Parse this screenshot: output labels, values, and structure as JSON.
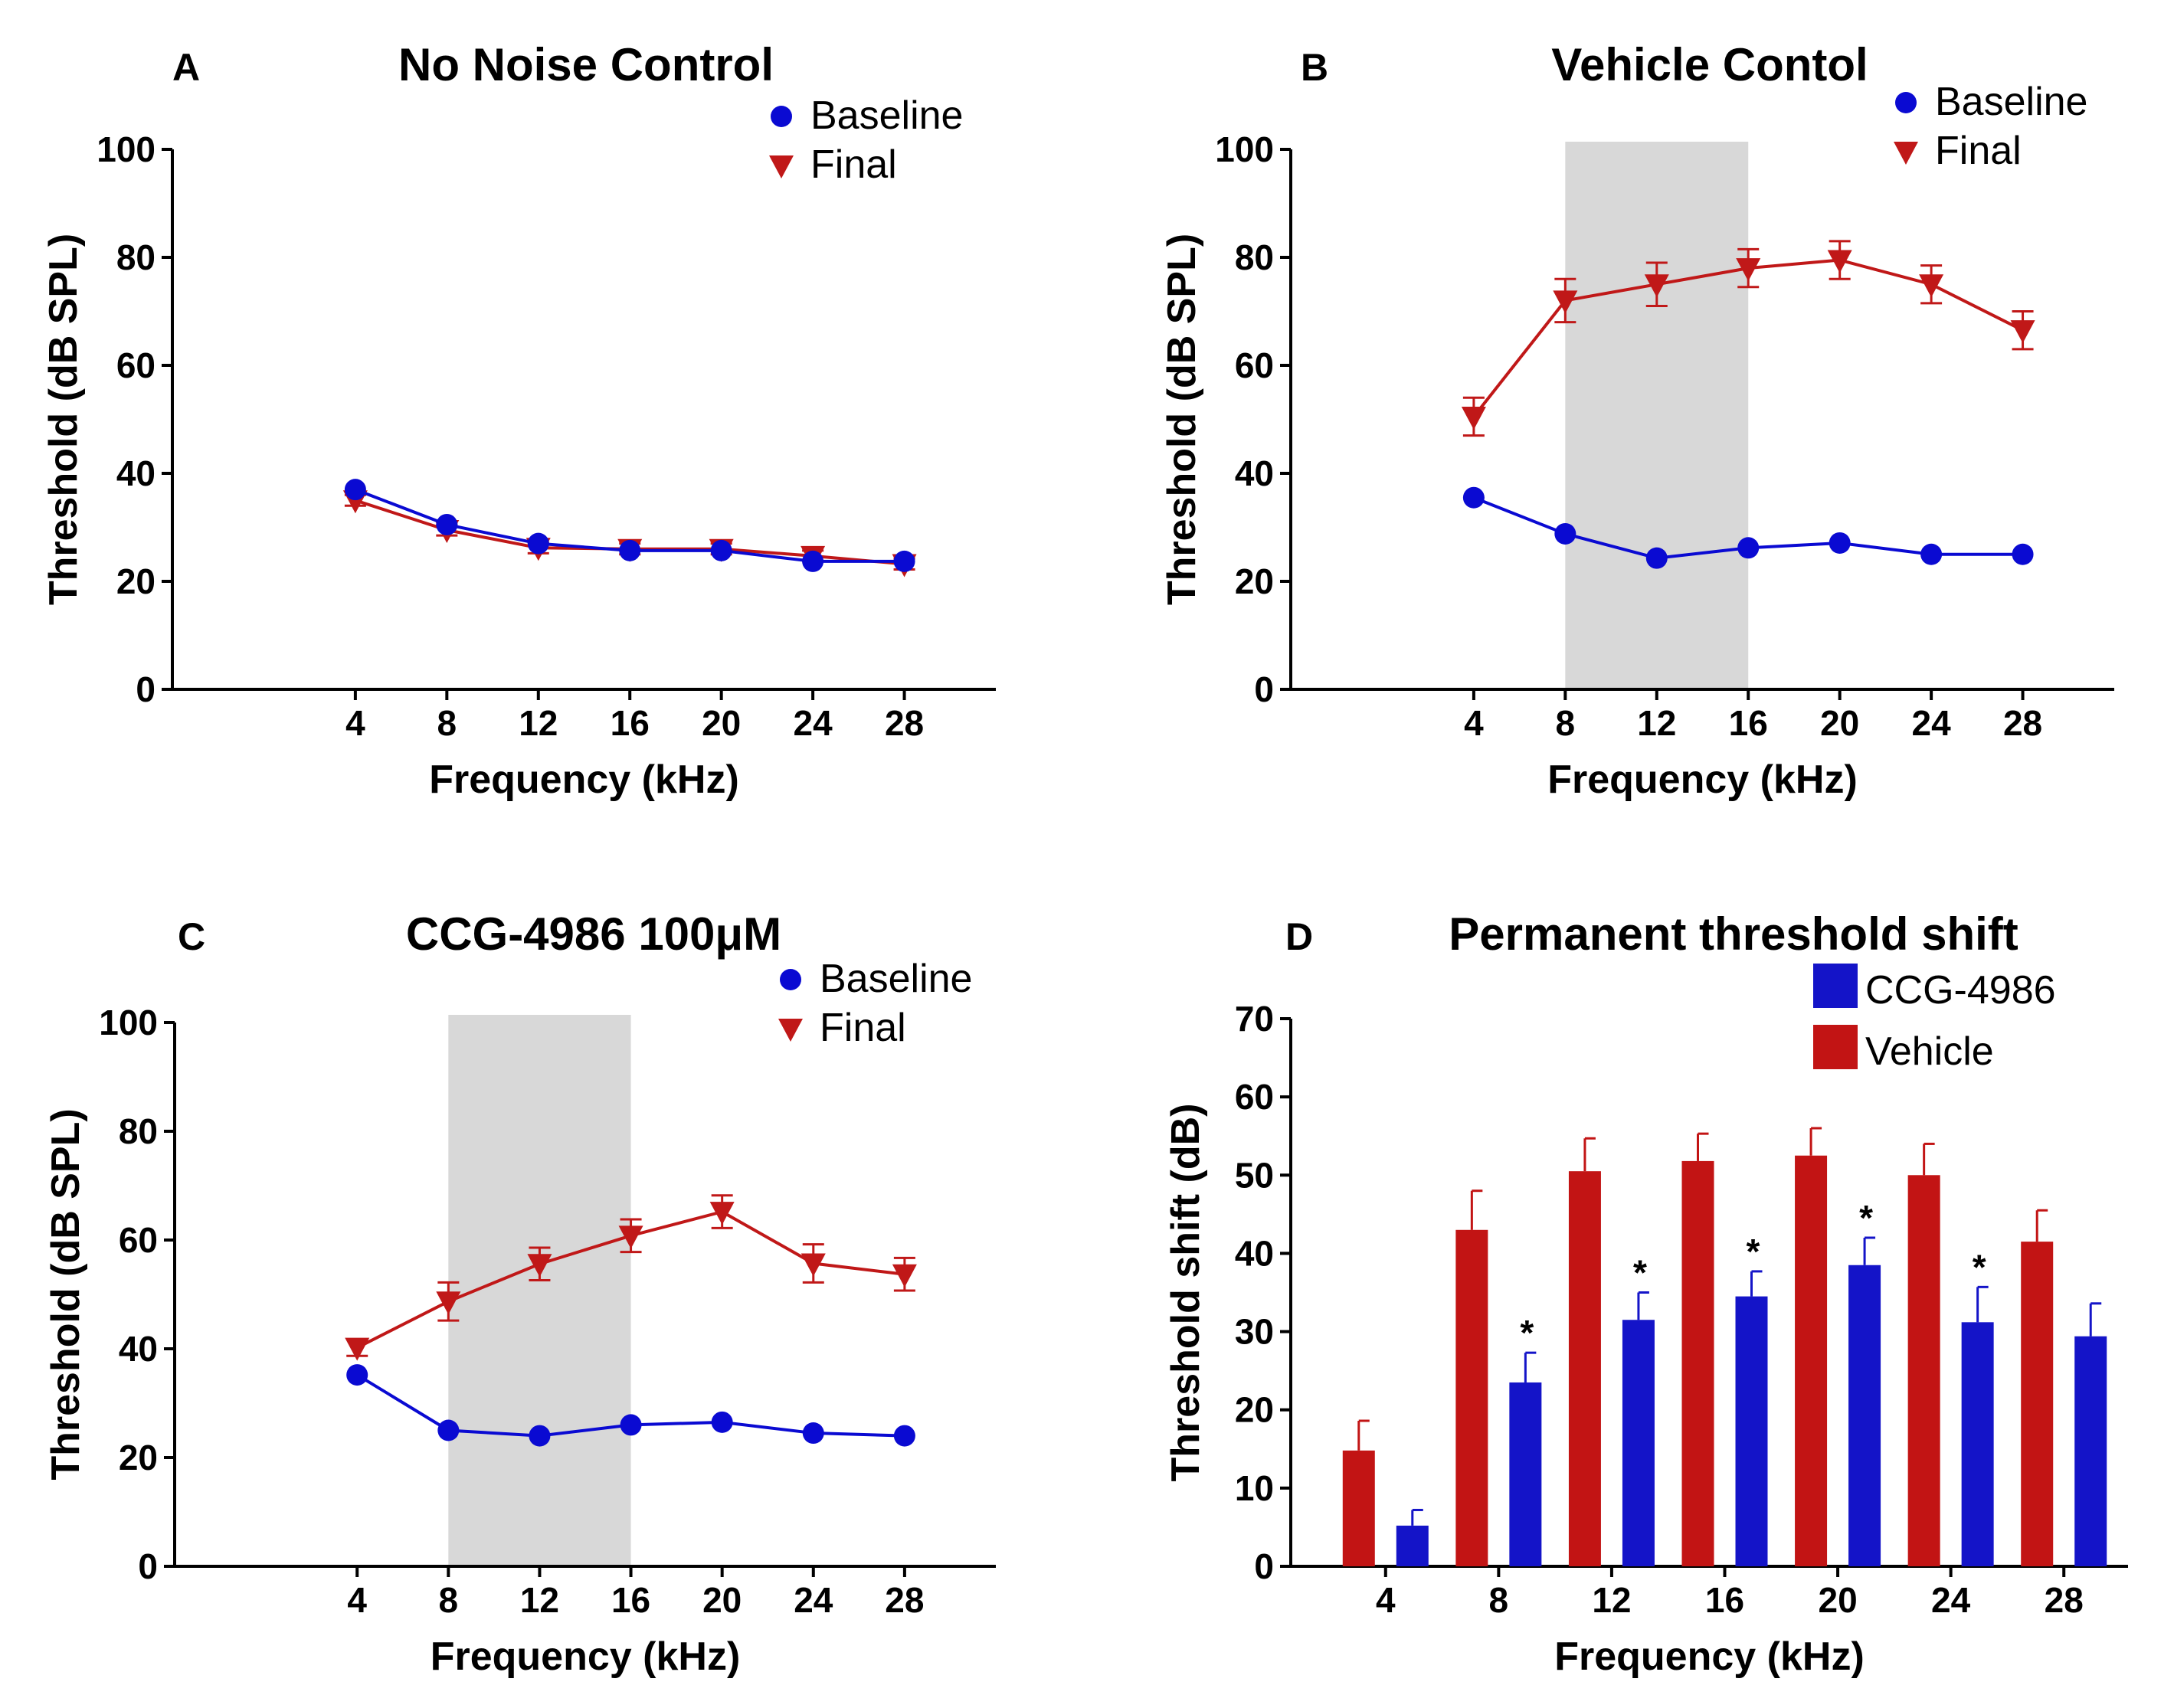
{
  "chart_data": [
    {
      "id": "A",
      "type": "line",
      "panel_label": "A",
      "title": "No Noise Control",
      "xlabel": "Frequency (kHz)",
      "ylabel": "Threshold (dB SPL)",
      "x": [
        4,
        8,
        12,
        16,
        20,
        24,
        28
      ],
      "xticks": [
        "4",
        "8",
        "12",
        "16",
        "20",
        "24",
        "28"
      ],
      "xlim": [
        -4,
        32
      ],
      "ylim": [
        0,
        100
      ],
      "yticks": [
        "0",
        "20",
        "40",
        "60",
        "80",
        "100"
      ],
      "shaded_region": null,
      "legend": [
        "Baseline",
        "Final"
      ],
      "series": [
        {
          "name": "Baseline",
          "color": "#0a0ad2",
          "marker": "circle",
          "values": [
            37,
            30.5,
            27,
            25.7,
            25.7,
            23.7,
            23.7
          ],
          "errors": [
            0,
            0,
            0,
            0,
            0,
            0,
            0
          ]
        },
        {
          "name": "Final",
          "color": "#c01818",
          "marker": "triangle-down",
          "values": [
            35,
            29.5,
            26.2,
            26,
            26,
            24.7,
            23.2
          ],
          "errors": [
            1,
            1,
            1,
            1,
            1,
            1,
            1
          ]
        }
      ]
    },
    {
      "id": "B",
      "type": "line",
      "panel_label": "B",
      "title": "Vehicle Contol",
      "xlabel": "Frequency (kHz)",
      "ylabel": "Threshold (dB SPL)",
      "x": [
        4,
        8,
        12,
        16,
        20,
        24,
        28
      ],
      "xticks": [
        "4",
        "8",
        "12",
        "16",
        "20",
        "24",
        "28"
      ],
      "xlim": [
        -4,
        32
      ],
      "ylim": [
        0,
        100
      ],
      "yticks": [
        "0",
        "20",
        "40",
        "60",
        "80",
        "100"
      ],
      "shaded_region": [
        8,
        16
      ],
      "legend": [
        "Baseline",
        "Final"
      ],
      "series": [
        {
          "name": "Baseline",
          "color": "#0a0ad2",
          "marker": "circle",
          "values": [
            35.5,
            28.8,
            24.3,
            26.2,
            27.1,
            25,
            25
          ],
          "errors": [
            0,
            0,
            0,
            0,
            0,
            0,
            0
          ]
        },
        {
          "name": "Final",
          "color": "#c01818",
          "marker": "triangle-down",
          "values": [
            50.5,
            72,
            75,
            78,
            79.5,
            75,
            66.5
          ],
          "errors": [
            3.5,
            4,
            4,
            3.5,
            3.5,
            3.5,
            3.5
          ]
        }
      ]
    },
    {
      "id": "C",
      "type": "line",
      "panel_label": "C",
      "title": "CCG-4986 100μM",
      "xlabel": "Frequency (kHz)",
      "ylabel": "Threshold (dB SPL)",
      "x": [
        4,
        8,
        12,
        16,
        20,
        24,
        28
      ],
      "xticks": [
        "4",
        "8",
        "12",
        "16",
        "20",
        "24",
        "28"
      ],
      "xlim": [
        -4,
        32
      ],
      "ylim": [
        0,
        100
      ],
      "yticks": [
        "0",
        "20",
        "40",
        "60",
        "80",
        "100"
      ],
      "shaded_region": [
        8,
        16
      ],
      "legend": [
        "Baseline",
        "Final"
      ],
      "series": [
        {
          "name": "Baseline",
          "color": "#0a0ad2",
          "marker": "circle",
          "values": [
            35.2,
            25,
            24,
            26,
            26.5,
            24.5,
            24
          ],
          "errors": [
            0,
            0,
            0,
            0,
            0,
            0,
            0
          ]
        },
        {
          "name": "Final",
          "color": "#c01818",
          "marker": "triangle-down",
          "values": [
            40.2,
            48.7,
            55.6,
            60.8,
            65.2,
            55.7,
            53.7
          ],
          "errors": [
            1.5,
            3.5,
            3,
            3,
            3,
            3.5,
            3
          ]
        }
      ]
    },
    {
      "id": "D",
      "type": "bar",
      "panel_label": "D",
      "title": "Permanent threshold shift",
      "xlabel": "Frequency (kHz)",
      "ylabel": "Threshold shift (dB)",
      "categories": [
        "4",
        "8",
        "12",
        "16",
        "20",
        "24",
        "28"
      ],
      "ylim": [
        0,
        70
      ],
      "yticks": [
        "0",
        "10",
        "20",
        "30",
        "40",
        "50",
        "60",
        "70"
      ],
      "legend": [
        "CCG-4986",
        "Vehicle"
      ],
      "significance_marker": "*",
      "series": [
        {
          "name": "Vehicle",
          "color": "#c21414",
          "values": [
            14.8,
            43,
            50.5,
            51.8,
            52.5,
            50,
            41.5
          ],
          "errors": [
            3.8,
            5,
            4.2,
            3.5,
            3.5,
            4,
            4
          ],
          "significant": [
            false,
            false,
            false,
            false,
            false,
            false,
            false
          ]
        },
        {
          "name": "CCG-4986",
          "color": "#1414c8",
          "values": [
            5.2,
            23.5,
            31.5,
            34.5,
            38.5,
            31.2,
            29.4
          ],
          "errors": [
            2,
            3.8,
            3.5,
            3.2,
            3.5,
            4.5,
            4.2
          ],
          "significant": [
            false,
            true,
            true,
            true,
            true,
            true,
            false
          ]
        }
      ]
    }
  ]
}
